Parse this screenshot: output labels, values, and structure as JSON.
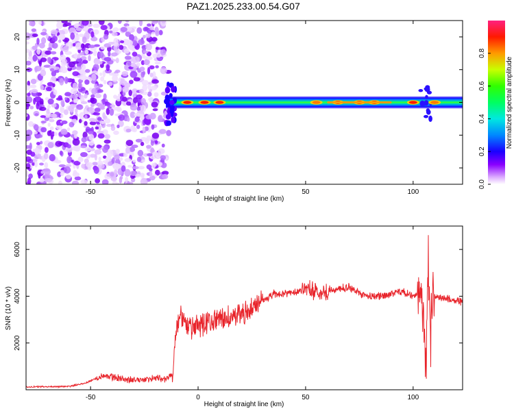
{
  "title": "PAZ1.2025.233.00.54.G07",
  "chart_data": [
    {
      "type": "heatmap",
      "xlabel": "Height of straight line (km)",
      "ylabel": "Frequency (Hz)",
      "xlim": [
        -80,
        123
      ],
      "ylim": [
        -25,
        25
      ],
      "xticks": [
        -50,
        0,
        50,
        100
      ],
      "yticks": [
        -20,
        -10,
        0,
        10,
        20
      ],
      "noise_region_x": [
        -80,
        -15
      ],
      "signal_band": {
        "x_start": -15,
        "x_end": 123,
        "center_freq": 0,
        "half_width": 2
      },
      "hot_spots": [
        {
          "x": -5,
          "value": 1.0
        },
        {
          "x": 3,
          "value": 1.0
        },
        {
          "x": 10,
          "value": 1.0
        },
        {
          "x": 55,
          "value": 0.95
        },
        {
          "x": 65,
          "value": 1.0
        },
        {
          "x": 75,
          "value": 1.0
        },
        {
          "x": 82,
          "value": 1.0
        },
        {
          "x": 100,
          "value": 1.0
        },
        {
          "x": 110,
          "value": 0.9
        }
      ],
      "colorbar": {
        "label": "Normalized spectral amplitude",
        "range": [
          0,
          1
        ],
        "ticks": [
          0.0,
          0.2,
          0.4,
          0.6,
          0.8
        ]
      }
    },
    {
      "type": "line",
      "series": [
        {
          "name": "SNR",
          "color": "#e8232a"
        }
      ],
      "xlabel": "Height of straight line (km)",
      "ylabel": "SNR (10 * v/v)",
      "xlim": [
        -80,
        123
      ],
      "ylim": [
        0,
        7000
      ],
      "xticks": [
        -50,
        0,
        50,
        100
      ],
      "yticks": [
        2000,
        4000,
        6000
      ],
      "x": [
        -80,
        -60,
        -52,
        -45,
        -40,
        -30,
        -20,
        -15,
        -12,
        -10,
        -8,
        -5,
        0,
        5,
        10,
        20,
        30,
        35,
        40,
        45,
        50,
        55,
        60,
        65,
        70,
        75,
        80,
        85,
        90,
        95,
        100,
        103,
        105,
        106,
        107,
        108,
        109,
        110,
        112,
        115,
        118,
        123
      ],
      "values": [
        120,
        140,
        300,
        600,
        550,
        400,
        500,
        450,
        700,
        2500,
        3200,
        2600,
        2700,
        2900,
        3000,
        3200,
        3800,
        4100,
        4100,
        4200,
        4300,
        4200,
        4200,
        4300,
        4400,
        4100,
        4000,
        4000,
        4100,
        4200,
        4000,
        4100,
        3000,
        200,
        6200,
        1500,
        4500,
        4000,
        3950,
        3900,
        3850,
        3750
      ]
    }
  ]
}
